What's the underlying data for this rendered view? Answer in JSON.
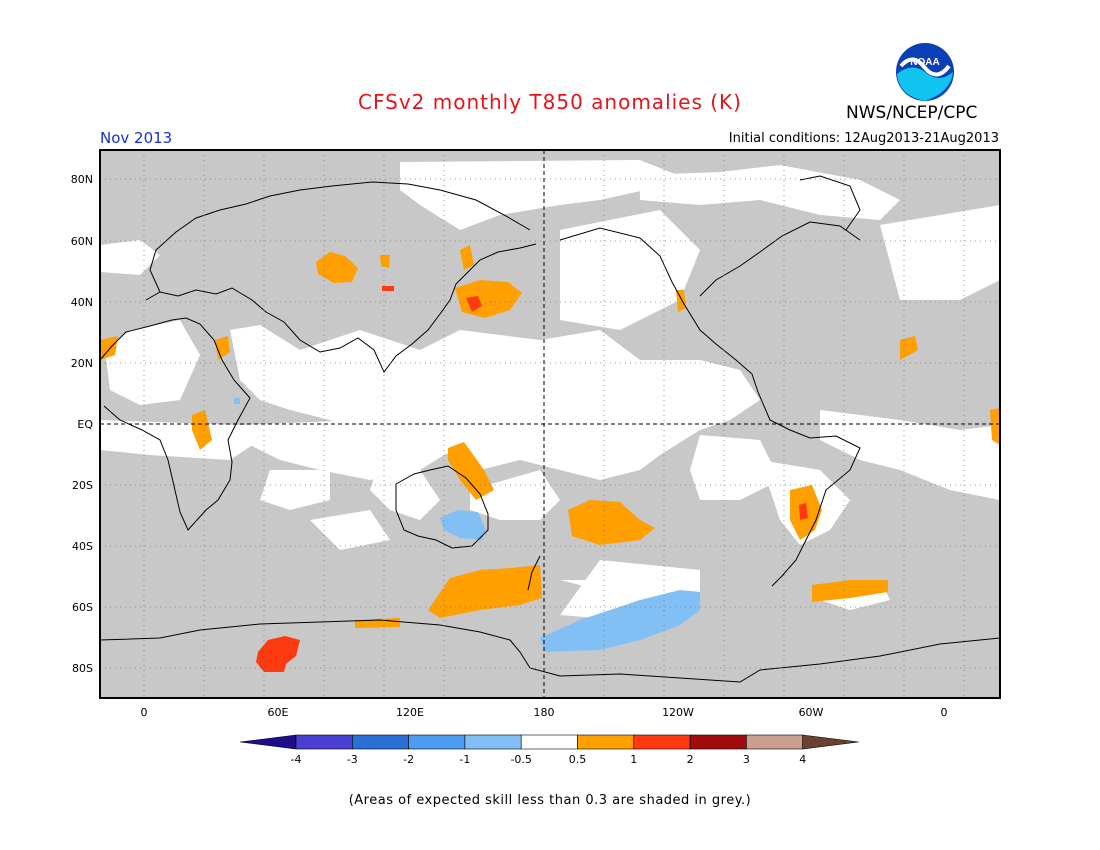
{
  "title": "CFSv2 monthly T850 anomalies (K)",
  "period": "Nov 2013",
  "initial_conditions": "Initial conditions: 12Aug2013-21Aug2013",
  "agency": "NWS/NCEP/CPC",
  "logo_text": "NOAA",
  "footnote": "(Areas of expected skill less than 0.3 are shaded in grey.)",
  "lat_labels": [
    "80N",
    "60N",
    "40N",
    "20N",
    "EQ",
    "20S",
    "40S",
    "60S",
    "80S"
  ],
  "lon_labels": [
    "0",
    "60E",
    "120E",
    "180",
    "120W",
    "60W",
    "0"
  ],
  "colorbar": {
    "labels": [
      "-4",
      "-3",
      "-2",
      "-1",
      "-0.5",
      "0.5",
      "1",
      "2",
      "3",
      "4"
    ],
    "colors": [
      "#1e0d8c",
      "#4a3fd0",
      "#2a6fd6",
      "#4e9cf0",
      "#82bff5",
      "#ffffff",
      "#ff9f00",
      "#ff3a10",
      "#a00c0c",
      "#c9a08f",
      "#6b4030"
    ]
  },
  "colors": {
    "skill_grey": "#c8c8c8",
    "title_red": "#e3151b",
    "period_blue": "#1a2fd0",
    "noaa_blue": "#0a3fb5",
    "noaa_cyan": "#12c4f0"
  }
}
